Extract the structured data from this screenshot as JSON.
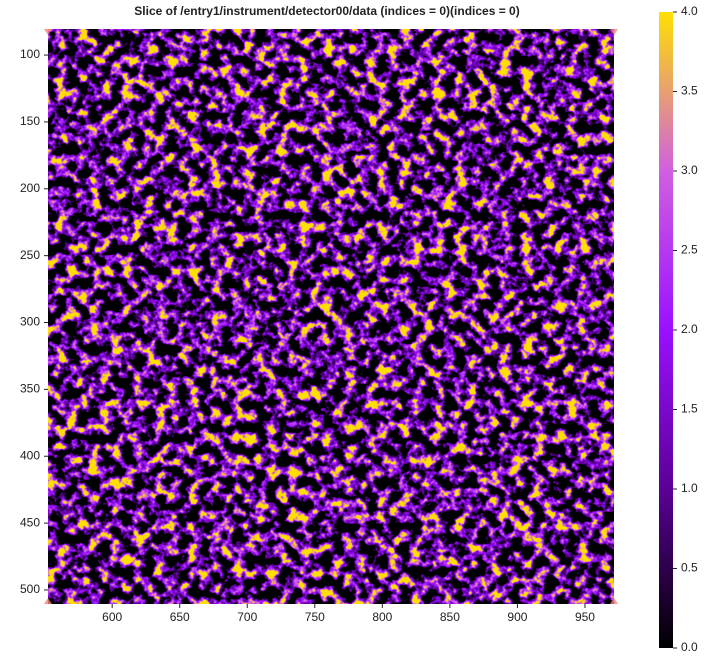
{
  "chart_data": {
    "type": "heatmap",
    "title": "Slice of /entry1/instrument/detector00/data (indices = 0)(indices = 0)",
    "xlim": [
      552.5,
      971.5
    ],
    "ylim": [
      80.5,
      510.5
    ],
    "y_inverted": true,
    "xticks": [
      600,
      650,
      700,
      750,
      800,
      850,
      900,
      950
    ],
    "yticks": [
      100,
      150,
      200,
      250,
      300,
      350,
      400,
      450,
      500
    ],
    "colormap": [
      "#000000",
      "#5a0096",
      "#9b10ff",
      "#d060e0",
      "#ffe000"
    ],
    "colorbar": {
      "lim": [
        0,
        4
      ],
      "ticks": [
        {
          "value": 0,
          "label": "0.0"
        },
        {
          "value": 0.5,
          "label": "0.5"
        },
        {
          "value": 1,
          "label": "1.0"
        },
        {
          "value": 1.5,
          "label": "1.5"
        },
        {
          "value": 2,
          "label": "2.0"
        },
        {
          "value": 2.5,
          "label": "2.5"
        },
        {
          "value": 3,
          "label": "3.0"
        },
        {
          "value": 3.5,
          "label": "3.5"
        },
        {
          "value": 4,
          "label": "4.0"
        }
      ]
    }
  }
}
